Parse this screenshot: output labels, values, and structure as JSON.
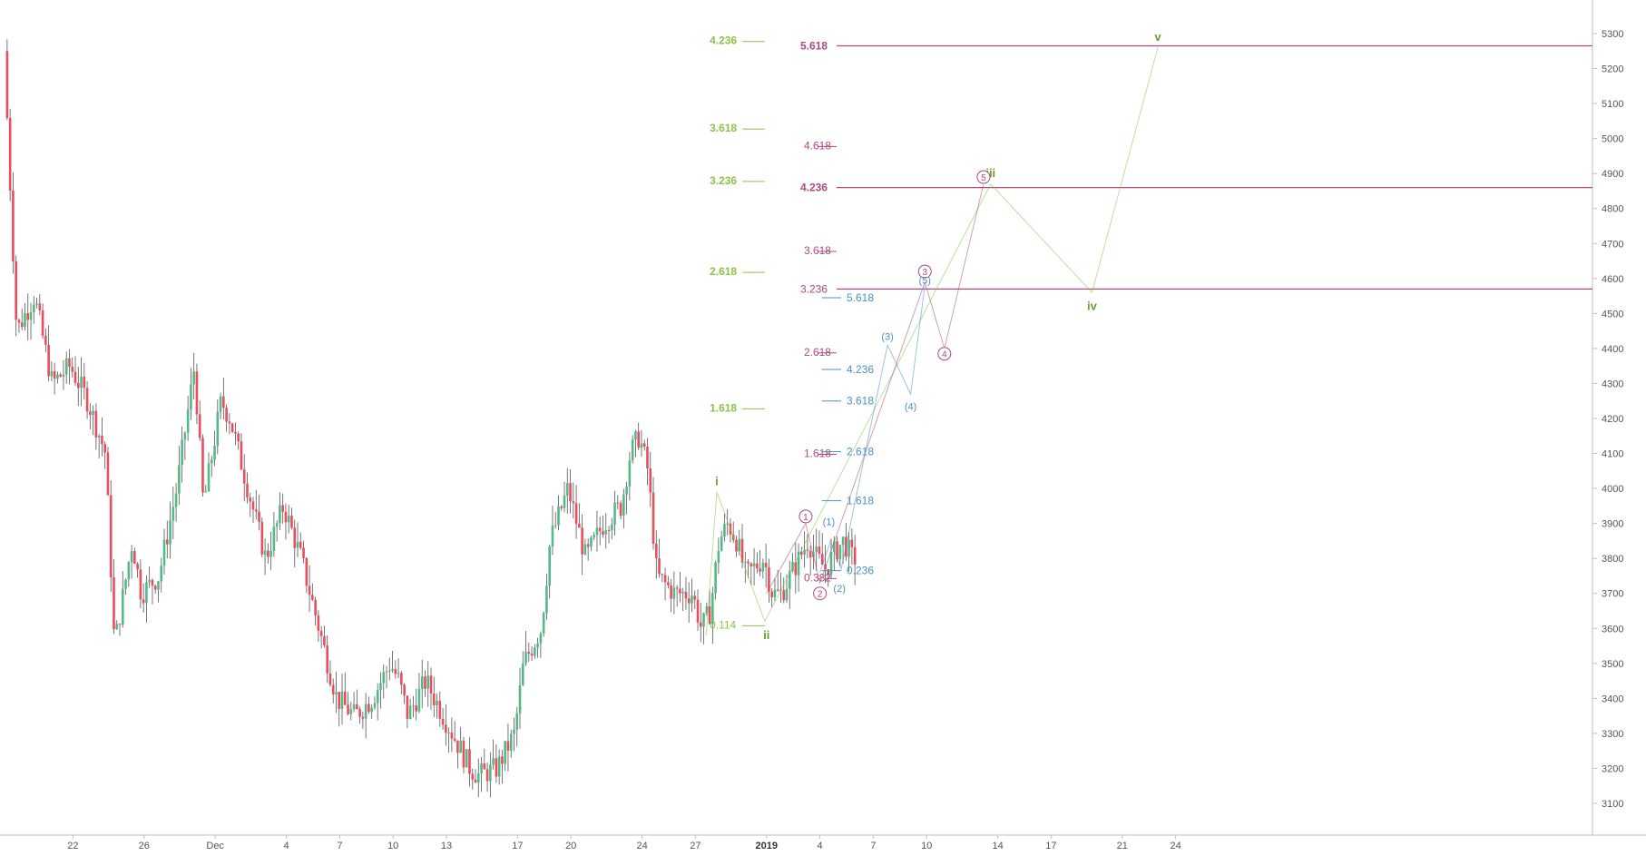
{
  "chart_data": {
    "type": "candlestick",
    "title": "",
    "xlabel": "",
    "ylabel": "",
    "ylim": [
      3030,
      5330
    ],
    "y_ticks": [
      3100,
      3200,
      3300,
      3400,
      3500,
      3600,
      3700,
      3800,
      3900,
      4000,
      4100,
      4200,
      4300,
      4400,
      4500,
      4600,
      4700,
      4800,
      4900,
      5000,
      5100,
      5200,
      5300
    ],
    "x_ticks": [
      {
        "label": "22",
        "bar": 22,
        "bold": false
      },
      {
        "label": "26",
        "bar": 26,
        "bold": false
      },
      {
        "label": "Dec",
        "bar": 30,
        "bold": false
      },
      {
        "label": "4",
        "bar": 34,
        "bold": false
      },
      {
        "label": "7",
        "bar": 37,
        "bold": false
      },
      {
        "label": "10",
        "bar": 40,
        "bold": false
      },
      {
        "label": "13",
        "bar": 43,
        "bold": false
      },
      {
        "label": "17",
        "bar": 47,
        "bold": false
      },
      {
        "label": "20",
        "bar": 50,
        "bold": false
      },
      {
        "label": "24",
        "bar": 54,
        "bold": false
      },
      {
        "label": "27",
        "bar": 57,
        "bold": false
      },
      {
        "label": "2019",
        "bar": 61,
        "bold": true
      },
      {
        "label": "4",
        "bar": 64,
        "bold": false
      },
      {
        "label": "7",
        "bar": 67,
        "bold": false
      },
      {
        "label": "10",
        "bar": 70,
        "bold": false
      },
      {
        "label": "14",
        "bar": 74,
        "bold": false
      },
      {
        "label": "17",
        "bar": 77,
        "bold": false
      },
      {
        "label": "21",
        "bar": 81,
        "bold": false
      },
      {
        "label": "24",
        "bar": 84,
        "bold": false
      }
    ],
    "price_path": [
      [
        18.3,
        5250
      ],
      [
        19.0,
        4450
      ],
      [
        20.0,
        4550
      ],
      [
        21.0,
        4300
      ],
      [
        22.0,
        4350
      ],
      [
        23.0,
        4250
      ],
      [
        24.0,
        4100
      ],
      [
        24.5,
        3550
      ],
      [
        25.5,
        3850
      ],
      [
        26.0,
        3700
      ],
      [
        27.0,
        3750
      ],
      [
        28.0,
        4000
      ],
      [
        29.0,
        4350
      ],
      [
        29.5,
        3950
      ],
      [
        30.5,
        4250
      ],
      [
        31.0,
        4200
      ],
      [
        31.5,
        4100
      ],
      [
        32.5,
        3900
      ],
      [
        33.0,
        3800
      ],
      [
        34.0,
        3950
      ],
      [
        35.0,
        3800
      ],
      [
        36.0,
        3600
      ],
      [
        37.0,
        3400
      ],
      [
        38.0,
        3350
      ],
      [
        39.0,
        3400
      ],
      [
        40.0,
        3500
      ],
      [
        40.5,
        3450
      ],
      [
        41.0,
        3350
      ],
      [
        42.0,
        3450
      ],
      [
        43.0,
        3350
      ],
      [
        44.0,
        3250
      ],
      [
        44.5,
        3200
      ],
      [
        45.0,
        3180
      ],
      [
        46.0,
        3200
      ],
      [
        47.0,
        3300
      ],
      [
        47.5,
        3500
      ],
      [
        48.0,
        3550
      ],
      [
        48.5,
        3600
      ],
      [
        49.0,
        3850
      ],
      [
        50.0,
        4000
      ],
      [
        50.5,
        3900
      ],
      [
        51.0,
        3800
      ],
      [
        51.5,
        3850
      ],
      [
        52.0,
        3900
      ],
      [
        53.0,
        3950
      ],
      [
        53.5,
        4100
      ],
      [
        54.0,
        4150
      ],
      [
        54.5,
        4050
      ],
      [
        55.0,
        3750
      ],
      [
        56.0,
        3700
      ],
      [
        57.0,
        3700
      ],
      [
        57.5,
        3600
      ],
      [
        58.0,
        3650
      ],
      [
        58.5,
        3850
      ],
      [
        59.0,
        3900
      ],
      [
        59.5,
        3850
      ],
      [
        60.0,
        3750
      ],
      [
        61.0,
        3800
      ],
      [
        61.5,
        3700
      ],
      [
        62.0,
        3700
      ],
      [
        62.5,
        3750
      ],
      [
        63.0,
        3800
      ],
      [
        63.5,
        3850
      ],
      [
        64.0,
        3800
      ],
      [
        64.5,
        3770
      ],
      [
        65.0,
        3820
      ],
      [
        65.5,
        3850
      ],
      [
        66.0,
        3800
      ]
    ],
    "fib_levels": [
      {
        "series": "green",
        "label": "4.236",
        "bar": 57.8,
        "end_bar": 60.9,
        "price": 5280,
        "bold": true
      },
      {
        "series": "green",
        "label": "3.618",
        "bar": 57.8,
        "end_bar": 60.9,
        "price": 5030,
        "bold": true
      },
      {
        "series": "green",
        "label": "3.236",
        "bar": 57.8,
        "end_bar": 60.9,
        "price": 4880,
        "bold": true
      },
      {
        "series": "green",
        "label": "2.618",
        "bar": 57.8,
        "end_bar": 60.9,
        "price": 4620,
        "bold": true
      },
      {
        "series": "green",
        "label": "1.618",
        "bar": 57.8,
        "end_bar": 60.9,
        "price": 4230,
        "bold": true
      },
      {
        "series": "green",
        "label": "0.114",
        "bar": 57.8,
        "end_bar": 60.9,
        "price": 3610,
        "bold": false
      },
      {
        "series": "magenta",
        "label": "4.618",
        "bar": 63.1,
        "end_bar": 63.9,
        "price": 4980,
        "bold": false
      },
      {
        "series": "magenta",
        "label": "3.618",
        "bar": 63.1,
        "end_bar": 63.9,
        "price": 4680,
        "bold": false
      },
      {
        "series": "magenta",
        "label": "2.618",
        "bar": 63.1,
        "end_bar": 63.9,
        "price": 4390,
        "bold": false
      },
      {
        "series": "magenta",
        "label": "1.618",
        "bar": 63.1,
        "end_bar": 63.9,
        "price": 4100,
        "bold": false
      },
      {
        "series": "magenta",
        "label": "0.382",
        "bar": 63.1,
        "end_bar": 64.3,
        "price": 3745,
        "bold": false
      },
      {
        "series": "blue",
        "label": "5.618",
        "bar": 64.1,
        "end_bar": 65.5,
        "price": 4545,
        "bold": false
      },
      {
        "series": "blue",
        "label": "4.236",
        "bar": 64.1,
        "end_bar": 65.5,
        "price": 4340,
        "bold": false
      },
      {
        "series": "blue",
        "label": "3.618",
        "bar": 64.1,
        "end_bar": 65.5,
        "price": 4250,
        "bold": false
      },
      {
        "series": "blue",
        "label": "2.618",
        "bar": 64.1,
        "end_bar": 65.5,
        "price": 4105,
        "bold": false
      },
      {
        "series": "blue",
        "label": "1.618",
        "bar": 64.1,
        "end_bar": 65.5,
        "price": 3965,
        "bold": false
      },
      {
        "series": "blue",
        "label": "0.236",
        "bar": 64.1,
        "end_bar": 65.5,
        "price": 3765,
        "bold": false
      }
    ],
    "horizontal_lines": [
      {
        "label": "5.618",
        "price": 5265,
        "bar": 63.1,
        "bold": true
      },
      {
        "label": "4.236",
        "price": 4860,
        "bar": 63.1,
        "bold": true
      },
      {
        "label": "3.236",
        "price": 4570,
        "bar": 63.1,
        "bold": false
      }
    ],
    "wave_labels": [
      {
        "series": "green",
        "label": "i",
        "bar": 58.2,
        "price": 4020
      },
      {
        "series": "green",
        "label": "ii",
        "bar": 61.0,
        "price": 3580
      },
      {
        "series": "green",
        "label": "iii",
        "bar": 73.6,
        "price": 4900
      },
      {
        "series": "green",
        "label": "iv",
        "bar": 79.3,
        "price": 4520
      },
      {
        "series": "green",
        "label": "v",
        "bar": 83.0,
        "price": 5290
      },
      {
        "series": "magenta-circled",
        "label": "1",
        "bar": 63.2,
        "price": 3920
      },
      {
        "series": "magenta-circled",
        "label": "2",
        "bar": 64.0,
        "price": 3700
      },
      {
        "series": "magenta-circled",
        "label": "3",
        "bar": 69.9,
        "price": 4620
      },
      {
        "series": "magenta-circled",
        "label": "4",
        "bar": 71.0,
        "price": 4385
      },
      {
        "series": "magenta-circled",
        "label": "5",
        "bar": 73.2,
        "price": 4890
      },
      {
        "series": "blue",
        "label": "(1)",
        "bar": 64.5,
        "price": 3905
      },
      {
        "series": "blue",
        "label": "(2)",
        "bar": 65.1,
        "price": 3715
      },
      {
        "series": "blue",
        "label": "(3)",
        "bar": 67.8,
        "price": 4435
      },
      {
        "series": "blue",
        "label": "(4)",
        "bar": 69.1,
        "price": 4235
      },
      {
        "series": "blue",
        "label": "(5)",
        "bar": 69.9,
        "price": 4595
      }
    ],
    "wave_paths": [
      {
        "series": "green",
        "points": [
          [
            57.6,
            3580
          ],
          [
            58.2,
            3990
          ],
          [
            60.9,
            3620
          ],
          [
            73.6,
            4870
          ],
          [
            79.3,
            4560
          ],
          [
            83.0,
            5260
          ]
        ]
      },
      {
        "series": "magenta",
        "points": [
          [
            61.0,
            3700
          ],
          [
            63.2,
            3900
          ],
          [
            64.0,
            3730
          ],
          [
            69.9,
            4590
          ],
          [
            71.0,
            4400
          ],
          [
            73.2,
            4870
          ]
        ]
      },
      {
        "series": "blue",
        "points": [
          [
            64.0,
            3760
          ],
          [
            64.6,
            3850
          ],
          [
            65.2,
            3770
          ],
          [
            67.8,
            4410
          ],
          [
            69.1,
            4270
          ],
          [
            69.9,
            4580
          ]
        ]
      }
    ],
    "legend": "none",
    "grid": false,
    "colors": {
      "bull": "#53b987",
      "bear": "#eb4d5c",
      "green": "#8bc34a",
      "green_label": "#6b9e2e",
      "magenta": "#b04a7e",
      "blue": "#4a90c8",
      "axis": "#555555",
      "axis_line": "#bfbfbf"
    }
  }
}
